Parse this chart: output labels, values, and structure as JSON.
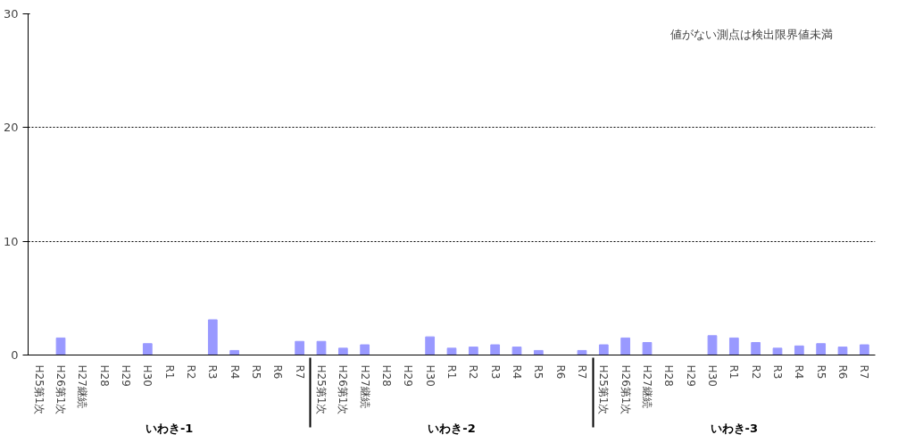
{
  "chart_data": {
    "type": "bar",
    "categories": [
      "H25第1次",
      "H26第1次",
      "H27継続",
      "H28",
      "H29",
      "H30",
      "R1",
      "R2",
      "R3",
      "R4",
      "R5",
      "R6",
      "R7",
      "H25第1次",
      "H26第1次",
      "H27継続",
      "H28",
      "H29",
      "H30",
      "R1",
      "R2",
      "R3",
      "R4",
      "R5",
      "R6",
      "R7",
      "H25第1次",
      "H26第1次",
      "H27継続",
      "H28",
      "H29",
      "H30",
      "R1",
      "R2",
      "R3",
      "R4",
      "R5",
      "R6",
      "R7"
    ],
    "values": [
      null,
      1.5,
      null,
      null,
      null,
      1.0,
      null,
      null,
      3.1,
      0.4,
      null,
      null,
      1.2,
      1.2,
      0.6,
      0.9,
      null,
      null,
      1.6,
      0.6,
      0.7,
      0.9,
      0.7,
      0.4,
      null,
      0.4,
      0.9,
      1.5,
      1.1,
      null,
      null,
      1.7,
      1.5,
      1.1,
      0.6,
      0.8,
      1.0,
      0.7,
      0.9
    ],
    "color": "#9999ff",
    "ylim": [
      0,
      30
    ],
    "yticks": [
      0,
      10,
      20,
      30
    ],
    "grid": "y",
    "annotations": [
      "値がない測点は検出限界値未満",
      "いわき-1",
      "いわき-2",
      "いわき-3"
    ]
  }
}
